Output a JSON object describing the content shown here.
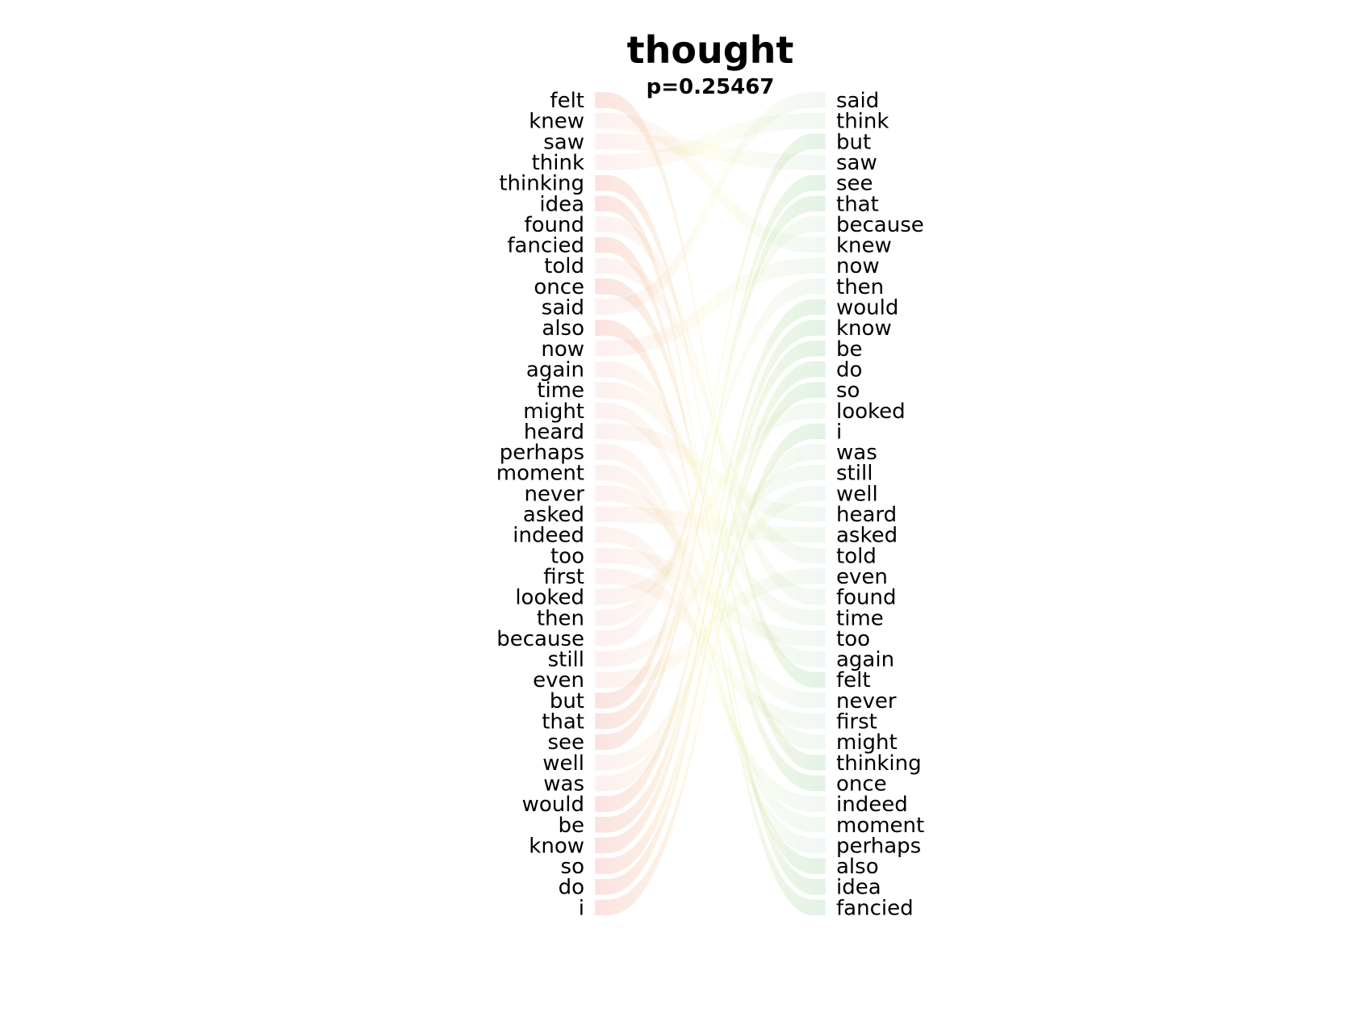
{
  "chart_data": {
    "type": "bump-slope",
    "title": "thought",
    "subtitle": "p=0.25467",
    "left_words": [
      "felt",
      "knew",
      "saw",
      "think",
      "thinking",
      "idea",
      "found",
      "fancied",
      "told",
      "once",
      "said",
      "also",
      "now",
      "again",
      "time",
      "might",
      "heard",
      "perhaps",
      "moment",
      "never",
      "asked",
      "indeed",
      "too",
      "first",
      "looked",
      "then",
      "because",
      "still",
      "even",
      "but",
      "that",
      "see",
      "well",
      "was",
      "would",
      "be",
      "know",
      "so",
      "do",
      "i"
    ],
    "right_words": [
      "said",
      "think",
      "but",
      "saw",
      "see",
      "that",
      "because",
      "knew",
      "now",
      "then",
      "would",
      "know",
      "be",
      "do",
      "so",
      "looked",
      "i",
      "was",
      "still",
      "well",
      "heard",
      "asked",
      "told",
      "even",
      "found",
      "time",
      "too",
      "again",
      "felt",
      "never",
      "first",
      "might",
      "thinking",
      "once",
      "indeed",
      "moment",
      "perhaps",
      "also",
      "idea",
      "fancied"
    ],
    "highlighted": [
      "felt",
      "thinking",
      "idea",
      "fancied",
      "once",
      "also",
      "but",
      "that",
      "see",
      "would",
      "be",
      "know",
      "so",
      "do",
      "i"
    ],
    "colors": {
      "left_band": "#f4a7a7",
      "right_band": "#a8d8b4",
      "middle_band": "#f7f7b0"
    }
  }
}
